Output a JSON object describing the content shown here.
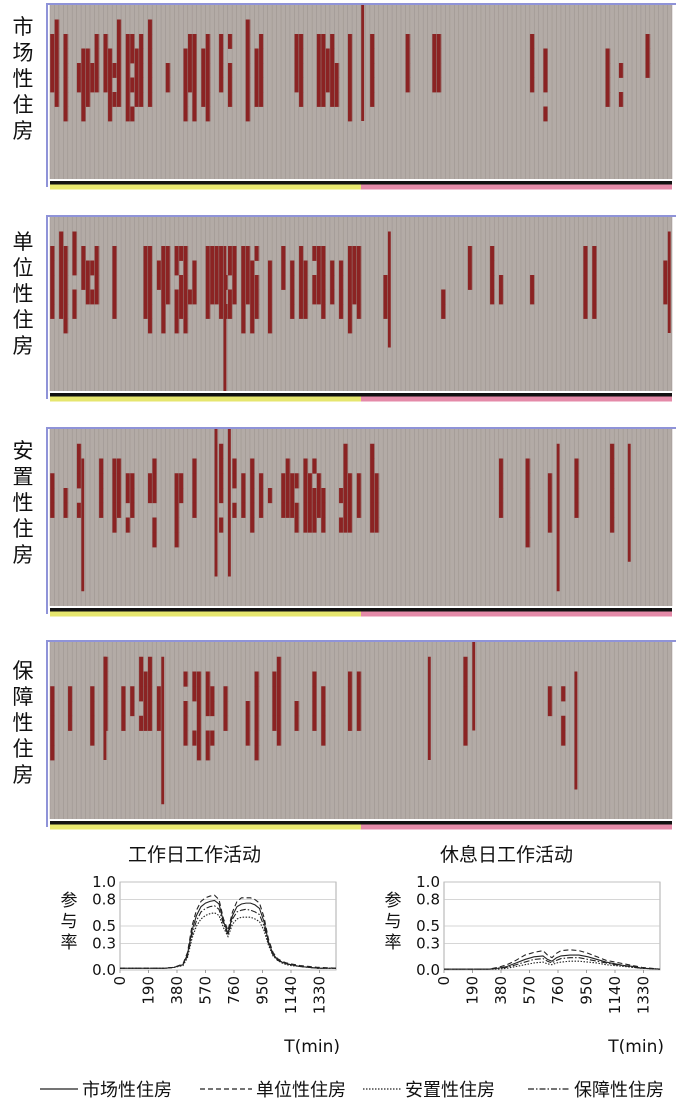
{
  "chart_data": {
    "type": "heatmap",
    "panels": [
      {
        "label": "市场性住房",
        "rows": 12,
        "cols": 140,
        "density_workday": 0.55,
        "density_restday": 0.18,
        "seed": 11
      },
      {
        "label": "单位性住房",
        "rows": 12,
        "cols": 140,
        "density_workday": 0.55,
        "density_restday": 0.2,
        "seed": 23
      },
      {
        "label": "安置性住房",
        "rows": 12,
        "cols": 140,
        "density_workday": 0.42,
        "density_restday": 0.07,
        "seed": 37
      },
      {
        "label": "保障性住房",
        "rows": 12,
        "cols": 140,
        "density_workday": 0.42,
        "density_restday": 0.08,
        "seed": 51
      }
    ],
    "workday_label": "工作日工作活动",
    "restday_label": "休息日工作活动",
    "workday_color": "#e6e66e",
    "restday_color": "#e48aa8",
    "active_color": "#8b2323",
    "inactive_color": "#b3aba6",
    "line_charts": [
      {
        "title": "工作日工作活动",
        "ylabel": "参与率",
        "xlabel": "T(min)",
        "ylim": [
          0,
          1.0
        ],
        "yticks": [
          "1.0",
          "0.8",
          "0.5",
          "0.3",
          "0.0"
        ],
        "ytick_values": [
          1.0,
          0.8,
          0.5,
          0.3,
          0.0
        ],
        "xticks": [
          "0",
          "190",
          "380",
          "570",
          "760",
          "950",
          "1140",
          "1330"
        ],
        "xtick_values": [
          0,
          190,
          380,
          570,
          760,
          950,
          1140,
          1330
        ],
        "xlim": [
          0,
          1440
        ],
        "x": [
          0,
          300,
          360,
          420,
          450,
          480,
          510,
          540,
          570,
          600,
          630,
          660,
          690,
          720,
          750,
          780,
          810,
          840,
          870,
          900,
          930,
          960,
          990,
          1020,
          1050,
          1080,
          1110,
          1140,
          1200,
          1260,
          1320,
          1440
        ],
        "series": [
          {
            "name": "市场性住房",
            "style": "solid",
            "values": [
              0.02,
              0.02,
              0.03,
              0.06,
              0.18,
              0.45,
              0.62,
              0.72,
              0.76,
              0.78,
              0.79,
              0.75,
              0.55,
              0.42,
              0.62,
              0.72,
              0.75,
              0.76,
              0.76,
              0.74,
              0.7,
              0.55,
              0.32,
              0.18,
              0.12,
              0.09,
              0.07,
              0.06,
              0.04,
              0.03,
              0.02,
              0.02
            ]
          },
          {
            "name": "单位性住房",
            "style": "dashed",
            "values": [
              0.02,
              0.02,
              0.03,
              0.07,
              0.2,
              0.5,
              0.68,
              0.78,
              0.82,
              0.84,
              0.85,
              0.8,
              0.58,
              0.45,
              0.66,
              0.78,
              0.82,
              0.82,
              0.82,
              0.8,
              0.76,
              0.6,
              0.35,
              0.2,
              0.13,
              0.1,
              0.08,
              0.07,
              0.05,
              0.04,
              0.03,
              0.02
            ]
          },
          {
            "name": "安置性住房",
            "style": "dotted",
            "values": [
              0.02,
              0.02,
              0.03,
              0.05,
              0.14,
              0.36,
              0.5,
              0.58,
              0.62,
              0.64,
              0.65,
              0.62,
              0.48,
              0.38,
              0.52,
              0.58,
              0.6,
              0.6,
              0.6,
              0.58,
              0.55,
              0.45,
              0.28,
              0.16,
              0.11,
              0.08,
              0.06,
              0.05,
              0.04,
              0.03,
              0.02,
              0.02
            ]
          },
          {
            "name": "保障性住房",
            "style": "dashdot",
            "values": [
              0.02,
              0.02,
              0.03,
              0.06,
              0.16,
              0.4,
              0.56,
              0.66,
              0.7,
              0.72,
              0.73,
              0.69,
              0.52,
              0.4,
              0.58,
              0.66,
              0.68,
              0.69,
              0.68,
              0.66,
              0.63,
              0.5,
              0.3,
              0.17,
              0.11,
              0.09,
              0.07,
              0.06,
              0.04,
              0.03,
              0.02,
              0.02
            ]
          }
        ]
      },
      {
        "title": "休息日工作活动",
        "ylabel": "参与率",
        "xlabel": "T(min)",
        "ylim": [
          0,
          1.0
        ],
        "yticks": [
          "1.0",
          "0.8",
          "0.5",
          "0.3",
          "0.0"
        ],
        "ytick_values": [
          1.0,
          0.8,
          0.5,
          0.3,
          0.0
        ],
        "xticks": [
          "0",
          "190",
          "380",
          "570",
          "760",
          "950",
          "1140",
          "1330"
        ],
        "xtick_values": [
          0,
          190,
          380,
          570,
          760,
          950,
          1140,
          1330
        ],
        "xlim": [
          0,
          1440
        ],
        "x": [
          0,
          300,
          360,
          420,
          480,
          540,
          600,
          660,
          690,
          720,
          750,
          780,
          840,
          900,
          960,
          1020,
          1080,
          1140,
          1200,
          1260,
          1320,
          1440
        ],
        "series": [
          {
            "name": "市场性住房",
            "style": "solid",
            "values": [
              0.01,
              0.01,
              0.02,
              0.04,
              0.08,
              0.12,
              0.15,
              0.16,
              0.12,
              0.1,
              0.14,
              0.16,
              0.17,
              0.17,
              0.15,
              0.12,
              0.09,
              0.07,
              0.05,
              0.04,
              0.02,
              0.01
            ]
          },
          {
            "name": "单位性住房",
            "style": "dashed",
            "values": [
              0.01,
              0.01,
              0.03,
              0.06,
              0.11,
              0.17,
              0.2,
              0.22,
              0.17,
              0.14,
              0.19,
              0.22,
              0.23,
              0.22,
              0.19,
              0.15,
              0.11,
              0.09,
              0.07,
              0.05,
              0.03,
              0.01
            ]
          },
          {
            "name": "安置性住房",
            "style": "dotted",
            "values": [
              0.01,
              0.01,
              0.01,
              0.02,
              0.04,
              0.06,
              0.08,
              0.09,
              0.07,
              0.06,
              0.08,
              0.09,
              0.1,
              0.1,
              0.09,
              0.08,
              0.06,
              0.05,
              0.04,
              0.03,
              0.02,
              0.01
            ]
          },
          {
            "name": "保障性住房",
            "style": "dashdot",
            "values": [
              0.01,
              0.01,
              0.02,
              0.03,
              0.06,
              0.09,
              0.12,
              0.13,
              0.1,
              0.08,
              0.11,
              0.13,
              0.14,
              0.14,
              0.12,
              0.1,
              0.08,
              0.06,
              0.05,
              0.03,
              0.02,
              0.01
            ]
          }
        ]
      }
    ],
    "legend": [
      {
        "name": "市场性住房",
        "style": "solid"
      },
      {
        "name": "单位性住房",
        "style": "dashed"
      },
      {
        "name": "安置性住房",
        "style": "dotted"
      },
      {
        "name": "保障性住房",
        "style": "dashdot"
      }
    ]
  }
}
